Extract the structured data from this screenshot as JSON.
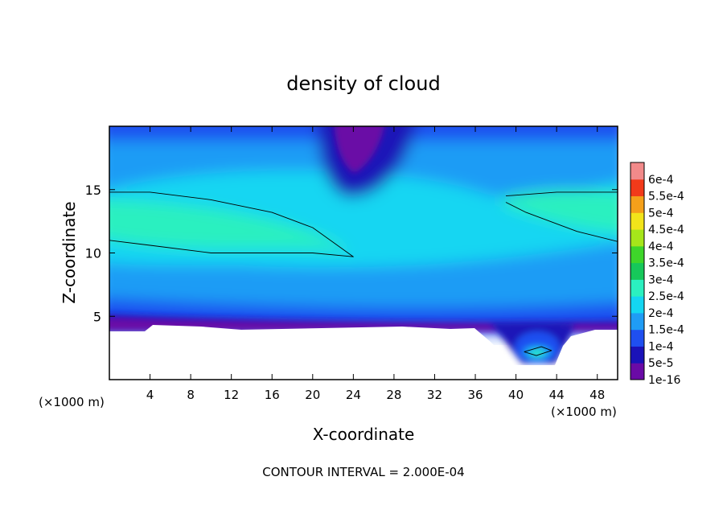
{
  "chart_data": {
    "type": "heatmap",
    "title": "density of cloud",
    "xlabel": "X-coordinate",
    "ylabel": "Z-coordinate",
    "x_unit_left": "(×1000 m)",
    "x_unit_right": "(×1000 m)",
    "footer": "CONTOUR INTERVAL = 2.000E-04",
    "xlim": [
      0,
      50
    ],
    "ylim": [
      0,
      20
    ],
    "x_ticks": [
      4,
      8,
      12,
      16,
      20,
      24,
      28,
      32,
      36,
      40,
      44,
      48
    ],
    "y_ticks": [
      5,
      10,
      15
    ],
    "x_tick_labels": [
      "4",
      "8",
      "12",
      "16",
      "20",
      "24",
      "28",
      "32",
      "36",
      "40",
      "44",
      "48"
    ],
    "y_tick_labels": [
      "5",
      "10",
      "15"
    ],
    "colorbar": {
      "levels": [
        1e-16,
        5e-05,
        0.0001,
        0.00015,
        0.0002,
        0.00025,
        0.0003,
        0.00035,
        0.0004,
        0.00045,
        0.0005,
        0.00055,
        0.0006
      ],
      "labels": [
        "1e-16",
        "5e-5",
        "1e-4",
        "1.5e-4",
        "2e-4",
        "2.5e-4",
        "3e-4",
        "3.5e-4",
        "4e-4",
        "4.5e-4",
        "5e-4",
        "5.5e-4",
        "6e-4"
      ],
      "colors": [
        "#6a0aa6",
        "#1a12b8",
        "#1f4ff0",
        "#1f9cf5",
        "#14d6f2",
        "#2bf0c0",
        "#16c85a",
        "#3ed62a",
        "#a6e61a",
        "#f2e41a",
        "#f5a01a",
        "#f23a1a",
        "#f28a8a"
      ]
    },
    "contours": [
      {
        "level": 0.0002,
        "points": [
          [
            0,
            14.8
          ],
          [
            4,
            14.8
          ],
          [
            10,
            14.2
          ],
          [
            16,
            13.2
          ],
          [
            20,
            12
          ],
          [
            24,
            9.7
          ],
          [
            20,
            10
          ],
          [
            15,
            10
          ],
          [
            10,
            10
          ],
          [
            4,
            10.6
          ],
          [
            0,
            11
          ]
        ]
      },
      {
        "level": 0.0002,
        "points": [
          [
            39,
            14.5
          ],
          [
            44,
            14.8
          ],
          [
            50,
            14.8
          ],
          [
            50,
            10.9
          ],
          [
            46,
            11.7
          ],
          [
            41,
            13.2
          ],
          [
            39,
            14
          ]
        ]
      },
      {
        "level": 0.0002,
        "points": [
          [
            40.8,
            2.2
          ],
          [
            42.5,
            2.6
          ],
          [
            43.5,
            2.3
          ],
          [
            42,
            1.9
          ],
          [
            40.8,
            2.2
          ]
        ]
      }
    ]
  }
}
